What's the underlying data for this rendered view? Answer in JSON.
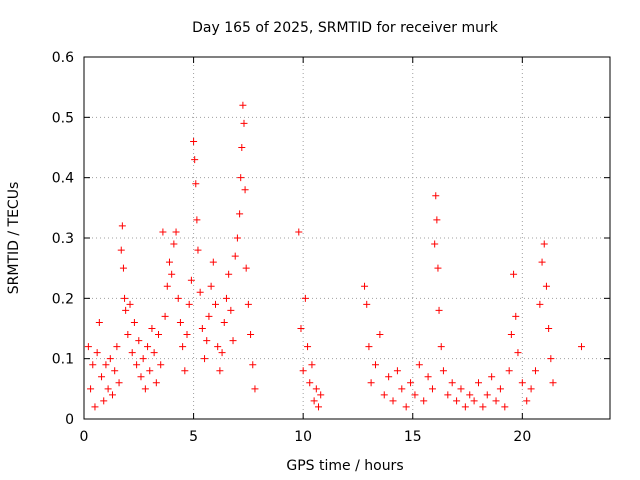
{
  "chart_data": {
    "type": "scatter",
    "title": "Day 165 of 2025, SRMTID for receiver murk",
    "xlabel": "GPS time / hours",
    "ylabel": "SRMTID / TECUs",
    "xlim": [
      0,
      24
    ],
    "ylim": [
      0,
      0.6
    ],
    "xticks": [
      0,
      5,
      10,
      15,
      20
    ],
    "yticks": [
      0,
      0.1,
      0.2,
      0.3,
      0.4,
      0.5,
      0.6
    ],
    "xtick_labels": [
      "0",
      "5",
      "10",
      "15",
      "20"
    ],
    "ytick_labels": [
      "0",
      "0.1",
      "0.2",
      "0.3",
      "0.4",
      "0.5",
      "0.6"
    ],
    "grid": true,
    "marker": "+",
    "series_color": "#ff0000",
    "points": [
      [
        0.2,
        0.12
      ],
      [
        0.3,
        0.05
      ],
      [
        0.4,
        0.09
      ],
      [
        0.5,
        0.02
      ],
      [
        0.6,
        0.11
      ],
      [
        0.7,
        0.16
      ],
      [
        0.8,
        0.07
      ],
      [
        0.9,
        0.03
      ],
      [
        1.0,
        0.09
      ],
      [
        1.1,
        0.05
      ],
      [
        1.2,
        0.1
      ],
      [
        1.3,
        0.04
      ],
      [
        1.4,
        0.08
      ],
      [
        1.5,
        0.12
      ],
      [
        1.6,
        0.06
      ],
      [
        1.7,
        0.28
      ],
      [
        1.75,
        0.32
      ],
      [
        1.8,
        0.25
      ],
      [
        1.85,
        0.2
      ],
      [
        1.9,
        0.18
      ],
      [
        2.0,
        0.14
      ],
      [
        2.1,
        0.19
      ],
      [
        2.2,
        0.11
      ],
      [
        2.3,
        0.16
      ],
      [
        2.4,
        0.09
      ],
      [
        2.5,
        0.13
      ],
      [
        2.6,
        0.07
      ],
      [
        2.7,
        0.1
      ],
      [
        2.8,
        0.05
      ],
      [
        2.9,
        0.12
      ],
      [
        3.0,
        0.08
      ],
      [
        3.1,
        0.15
      ],
      [
        3.2,
        0.11
      ],
      [
        3.3,
        0.06
      ],
      [
        3.4,
        0.14
      ],
      [
        3.5,
        0.09
      ],
      [
        3.6,
        0.31
      ],
      [
        3.7,
        0.17
      ],
      [
        3.8,
        0.22
      ],
      [
        3.9,
        0.26
      ],
      [
        4.0,
        0.24
      ],
      [
        4.1,
        0.29
      ],
      [
        4.2,
        0.31
      ],
      [
        4.3,
        0.2
      ],
      [
        4.4,
        0.16
      ],
      [
        4.5,
        0.12
      ],
      [
        4.6,
        0.08
      ],
      [
        4.7,
        0.14
      ],
      [
        4.8,
        0.19
      ],
      [
        4.9,
        0.23
      ],
      [
        5.0,
        0.46
      ],
      [
        5.05,
        0.43
      ],
      [
        5.1,
        0.39
      ],
      [
        5.15,
        0.33
      ],
      [
        5.2,
        0.28
      ],
      [
        5.3,
        0.21
      ],
      [
        5.4,
        0.15
      ],
      [
        5.5,
        0.1
      ],
      [
        5.6,
        0.13
      ],
      [
        5.7,
        0.17
      ],
      [
        5.8,
        0.22
      ],
      [
        5.9,
        0.26
      ],
      [
        6.0,
        0.19
      ],
      [
        6.1,
        0.12
      ],
      [
        6.2,
        0.08
      ],
      [
        6.3,
        0.11
      ],
      [
        6.4,
        0.16
      ],
      [
        6.5,
        0.2
      ],
      [
        6.6,
        0.24
      ],
      [
        6.7,
        0.18
      ],
      [
        6.8,
        0.13
      ],
      [
        6.9,
        0.27
      ],
      [
        7.0,
        0.3
      ],
      [
        7.1,
        0.34
      ],
      [
        7.15,
        0.4
      ],
      [
        7.2,
        0.45
      ],
      [
        7.25,
        0.52
      ],
      [
        7.3,
        0.49
      ],
      [
        7.35,
        0.38
      ],
      [
        7.4,
        0.25
      ],
      [
        7.5,
        0.19
      ],
      [
        7.6,
        0.14
      ],
      [
        7.7,
        0.09
      ],
      [
        7.8,
        0.05
      ],
      [
        9.8,
        0.31
      ],
      [
        9.9,
        0.15
      ],
      [
        10.0,
        0.08
      ],
      [
        10.1,
        0.2
      ],
      [
        10.2,
        0.12
      ],
      [
        10.3,
        0.06
      ],
      [
        10.4,
        0.09
      ],
      [
        10.5,
        0.03
      ],
      [
        10.6,
        0.05
      ],
      [
        10.7,
        0.02
      ],
      [
        10.8,
        0.04
      ],
      [
        12.8,
        0.22
      ],
      [
        12.9,
        0.19
      ],
      [
        13.0,
        0.12
      ],
      [
        13.1,
        0.06
      ],
      [
        13.3,
        0.09
      ],
      [
        13.5,
        0.14
      ],
      [
        13.7,
        0.04
      ],
      [
        13.9,
        0.07
      ],
      [
        14.1,
        0.03
      ],
      [
        14.3,
        0.08
      ],
      [
        14.5,
        0.05
      ],
      [
        14.7,
        0.02
      ],
      [
        14.9,
        0.06
      ],
      [
        15.1,
        0.04
      ],
      [
        15.3,
        0.09
      ],
      [
        15.5,
        0.03
      ],
      [
        15.7,
        0.07
      ],
      [
        15.9,
        0.05
      ],
      [
        16.0,
        0.29
      ],
      [
        16.05,
        0.37
      ],
      [
        16.1,
        0.33
      ],
      [
        16.15,
        0.25
      ],
      [
        16.2,
        0.18
      ],
      [
        16.3,
        0.12
      ],
      [
        16.4,
        0.08
      ],
      [
        16.6,
        0.04
      ],
      [
        16.8,
        0.06
      ],
      [
        17.0,
        0.03
      ],
      [
        17.2,
        0.05
      ],
      [
        17.4,
        0.02
      ],
      [
        17.6,
        0.04
      ],
      [
        17.8,
        0.03
      ],
      [
        18.0,
        0.06
      ],
      [
        18.2,
        0.02
      ],
      [
        18.4,
        0.04
      ],
      [
        18.6,
        0.07
      ],
      [
        18.8,
        0.03
      ],
      [
        19.0,
        0.05
      ],
      [
        19.2,
        0.02
      ],
      [
        19.4,
        0.08
      ],
      [
        19.5,
        0.14
      ],
      [
        19.6,
        0.24
      ],
      [
        19.7,
        0.17
      ],
      [
        19.8,
        0.11
      ],
      [
        20.0,
        0.06
      ],
      [
        20.2,
        0.03
      ],
      [
        20.4,
        0.05
      ],
      [
        20.6,
        0.08
      ],
      [
        20.8,
        0.19
      ],
      [
        20.9,
        0.26
      ],
      [
        21.0,
        0.29
      ],
      [
        21.1,
        0.22
      ],
      [
        21.2,
        0.15
      ],
      [
        21.3,
        0.1
      ],
      [
        21.4,
        0.06
      ],
      [
        22.7,
        0.12
      ]
    ]
  }
}
